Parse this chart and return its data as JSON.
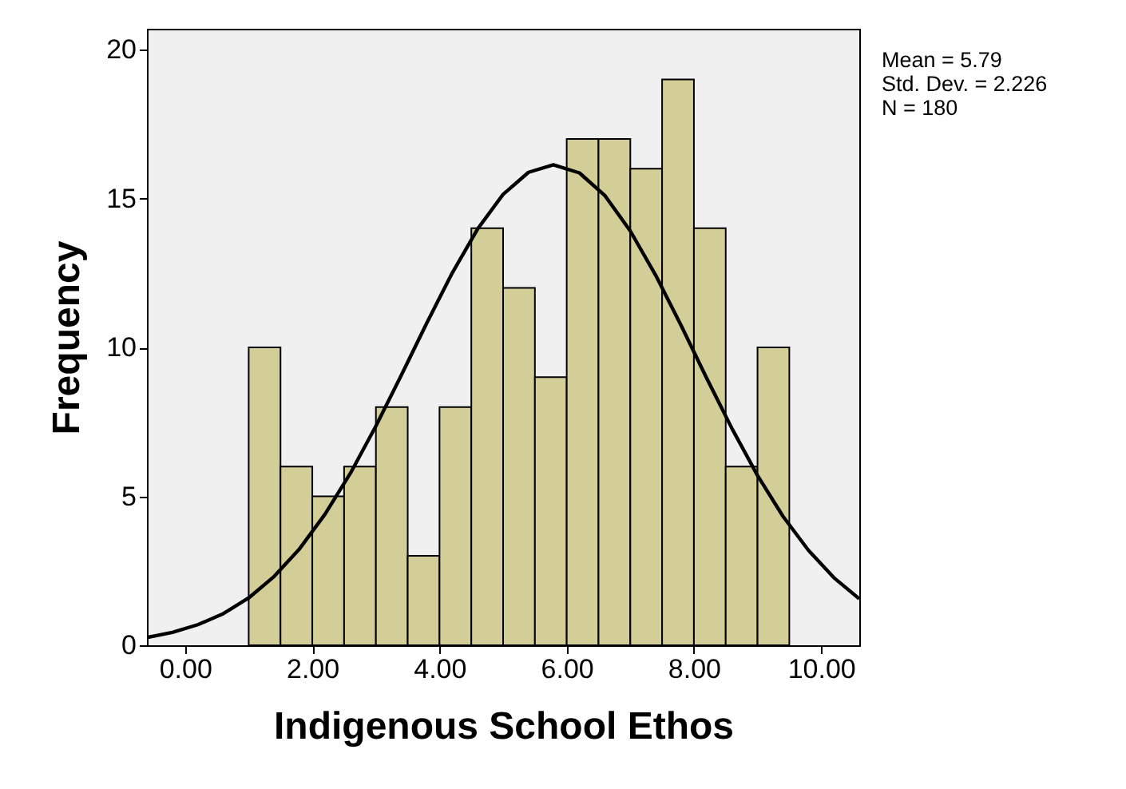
{
  "chart_data": {
    "type": "histogram",
    "xlabel": "Indigenous School Ethos",
    "ylabel": "Frequency",
    "annotations": [
      "Mean = 5.79",
      "Std. Dev. = 2.226",
      "N = 180"
    ],
    "series": [
      {
        "type": "histogram",
        "color": "#d3ce97",
        "bins": [
          1.0,
          1.5,
          2.0,
          2.5,
          3.0,
          3.5,
          4.0,
          4.5,
          5.0,
          5.5,
          6.0,
          6.5,
          7.0,
          7.5,
          8.0,
          8.5,
          9.0,
          9.5
        ],
        "values": [
          10,
          6,
          5,
          6,
          8,
          3,
          8,
          14,
          12,
          9,
          17,
          17,
          16,
          19,
          14,
          6,
          10
        ]
      },
      {
        "type": "line",
        "color": "#000000",
        "x": [
          -0.6,
          -0.2,
          0.2,
          0.6,
          1.0,
          1.4,
          1.8,
          2.2,
          2.6,
          3.0,
          3.4,
          3.8,
          4.2,
          4.6,
          5.0,
          5.4,
          5.79,
          6.2,
          6.6,
          7.0,
          7.4,
          7.8,
          8.2,
          8.6,
          9.0,
          9.4,
          9.8,
          10.2,
          10.6
        ],
        "values": [
          0.26,
          0.43,
          0.69,
          1.06,
          1.59,
          2.31,
          3.24,
          4.4,
          5.78,
          7.36,
          9.07,
          10.82,
          12.5,
          13.98,
          15.14,
          15.88,
          16.13,
          15.86,
          15.1,
          13.91,
          12.42,
          10.73,
          8.97,
          7.27,
          5.7,
          4.33,
          3.19,
          2.27,
          1.56
        ]
      }
    ],
    "xlim": [
      -0.6,
      10.6
    ],
    "ylim": [
      0,
      20.7
    ],
    "xticks": [
      {
        "value": 0,
        "label": "0.00"
      },
      {
        "value": 2,
        "label": "2.00"
      },
      {
        "value": 4,
        "label": "4.00"
      },
      {
        "value": 6,
        "label": "6.00"
      },
      {
        "value": 8,
        "label": "8.00"
      },
      {
        "value": 10,
        "label": "10.00"
      }
    ],
    "yticks": [
      0,
      5,
      10,
      15,
      20
    ],
    "grid": false
  }
}
